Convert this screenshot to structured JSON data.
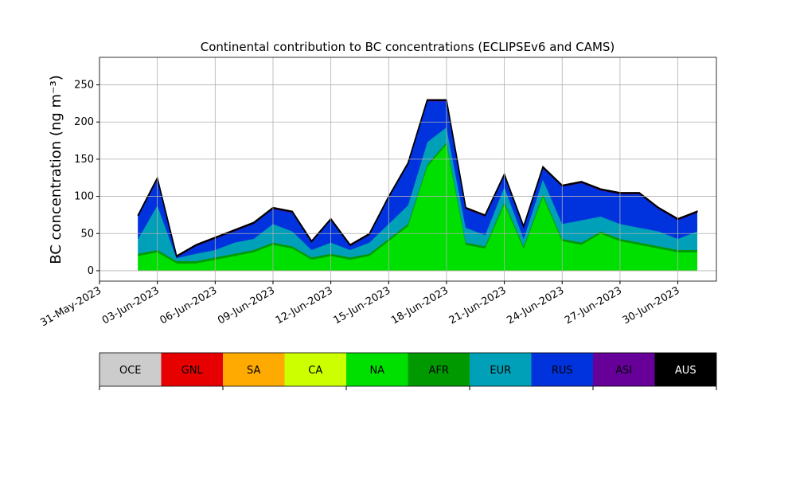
{
  "chart_data": {
    "type": "stacked_area",
    "title": "Continental contribution to BC concentrations (ECLIPSEv6 and CAMS)",
    "ylabel": "BC concentration (ng m⁻³)",
    "x": [
      "2023-06-02",
      "2023-06-03",
      "2023-06-04",
      "2023-06-05",
      "2023-06-06",
      "2023-06-07",
      "2023-06-08",
      "2023-06-09",
      "2023-06-10",
      "2023-06-11",
      "2023-06-12",
      "2023-06-13",
      "2023-06-14",
      "2023-06-15",
      "2023-06-16",
      "2023-06-17",
      "2023-06-18",
      "2023-06-19",
      "2023-06-20",
      "2023-06-21",
      "2023-06-22",
      "2023-06-23",
      "2023-06-24",
      "2023-06-25",
      "2023-06-26",
      "2023-06-27",
      "2023-06-28",
      "2023-06-29",
      "2023-06-30",
      "2023-07-01"
    ],
    "series": [
      {
        "name": "OCE",
        "color": "#cccccc",
        "values": [
          0,
          0,
          0,
          0,
          0,
          0,
          0,
          0,
          0,
          0,
          0,
          0,
          0,
          0,
          0,
          0,
          0,
          0,
          0,
          0,
          0,
          0,
          0,
          0,
          0,
          0,
          0,
          0,
          0,
          0
        ]
      },
      {
        "name": "GNL",
        "color": "#e60000",
        "values": [
          0,
          0,
          0,
          0,
          0,
          0,
          0,
          0,
          0,
          0,
          0,
          0,
          0,
          0,
          0,
          0,
          0,
          0,
          0,
          0,
          0,
          0,
          0,
          0,
          0,
          0,
          0,
          0,
          0,
          0
        ]
      },
      {
        "name": "SA",
        "color": "#ffaa00",
        "values": [
          0,
          0,
          0,
          0,
          0,
          0,
          0,
          0,
          0,
          0,
          0,
          0,
          0,
          0,
          0,
          0,
          0,
          0,
          0,
          0,
          0,
          0,
          0,
          0,
          0,
          0,
          0,
          0,
          0,
          0
        ]
      },
      {
        "name": "CA",
        "color": "#ccff00",
        "values": [
          0,
          0,
          0,
          0,
          0,
          0,
          0,
          0,
          0,
          0,
          0,
          0,
          0,
          0,
          0,
          0,
          0,
          0,
          0,
          0,
          0,
          0,
          0,
          0,
          0,
          0,
          0,
          0,
          0,
          0
        ]
      },
      {
        "name": "NA",
        "color": "#00e000",
        "values": [
          20,
          25,
          10,
          10,
          15,
          20,
          25,
          35,
          30,
          15,
          20,
          15,
          20,
          40,
          60,
          140,
          170,
          35,
          30,
          90,
          30,
          100,
          40,
          35,
          50,
          40,
          35,
          30,
          25,
          25
        ]
      },
      {
        "name": "AFR",
        "color": "#009900",
        "values": [
          3,
          3,
          3,
          3,
          3,
          3,
          3,
          3,
          3,
          3,
          3,
          3,
          3,
          3,
          3,
          3,
          3,
          3,
          3,
          3,
          3,
          3,
          3,
          3,
          3,
          3,
          3,
          3,
          3,
          3
        ]
      },
      {
        "name": "EUR",
        "color": "#00a0b8",
        "values": [
          20,
          60,
          4,
          10,
          10,
          15,
          15,
          25,
          20,
          10,
          15,
          10,
          15,
          20,
          25,
          30,
          20,
          20,
          15,
          20,
          10,
          20,
          20,
          30,
          20,
          20,
          20,
          20,
          15,
          25
        ]
      },
      {
        "name": "RUS",
        "color": "#0033dd",
        "values": [
          30,
          35,
          1,
          10,
          15,
          15,
          20,
          20,
          25,
          10,
          30,
          5,
          10,
          35,
          55,
          55,
          35,
          25,
          25,
          15,
          15,
          15,
          50,
          50,
          35,
          40,
          45,
          30,
          25,
          25
        ]
      },
      {
        "name": "ASI",
        "color": "#660099",
        "values": [
          1,
          1,
          1,
          1,
          1,
          1,
          1,
          1,
          1,
          1,
          1,
          1,
          1,
          1,
          1,
          1,
          1,
          1,
          1,
          1,
          1,
          1,
          1,
          1,
          1,
          1,
          1,
          1,
          1,
          1
        ]
      },
      {
        "name": "AUS",
        "color": "#000000",
        "values": [
          1,
          1,
          1,
          1,
          1,
          1,
          1,
          1,
          1,
          1,
          1,
          1,
          1,
          1,
          1,
          1,
          1,
          1,
          1,
          1,
          1,
          1,
          1,
          1,
          1,
          1,
          1,
          1,
          1,
          1
        ]
      }
    ],
    "xlim": [
      "2023-05-31",
      "2023-07-02"
    ],
    "xticks": [
      {
        "value": "2023-05-31",
        "label": "31-May-2023"
      },
      {
        "value": "2023-06-03",
        "label": "03-Jun-2023"
      },
      {
        "value": "2023-06-06",
        "label": "06-Jun-2023"
      },
      {
        "value": "2023-06-09",
        "label": "09-Jun-2023"
      },
      {
        "value": "2023-06-12",
        "label": "12-Jun-2023"
      },
      {
        "value": "2023-06-15",
        "label": "15-Jun-2023"
      },
      {
        "value": "2023-06-18",
        "label": "18-Jun-2023"
      },
      {
        "value": "2023-06-21",
        "label": "21-Jun-2023"
      },
      {
        "value": "2023-06-24",
        "label": "24-Jun-2023"
      },
      {
        "value": "2023-06-27",
        "label": "27-Jun-2023"
      },
      {
        "value": "2023-06-30",
        "label": "30-Jun-2023"
      }
    ],
    "ylim": [
      -14,
      287
    ],
    "yticks": [
      0,
      50,
      100,
      150,
      200,
      250
    ],
    "grid": true
  }
}
